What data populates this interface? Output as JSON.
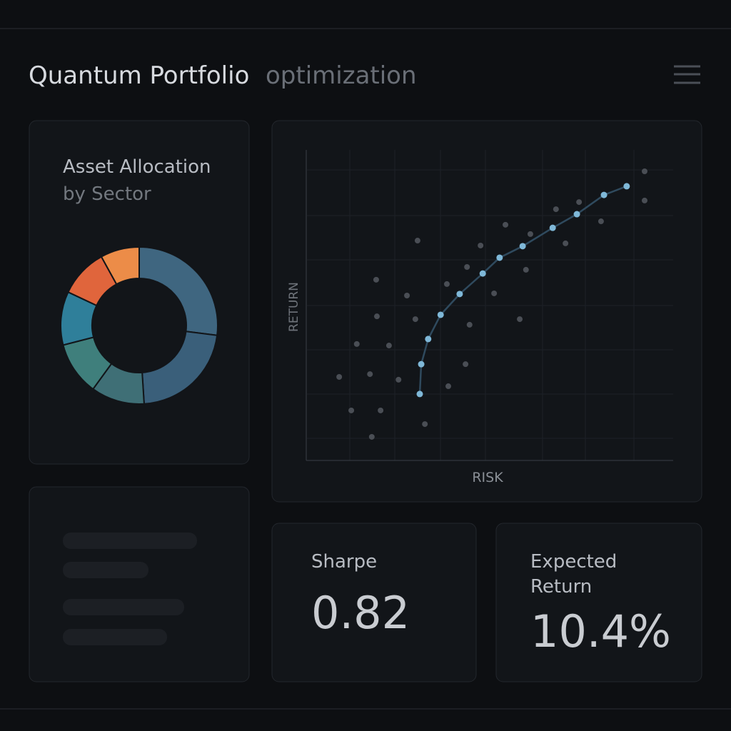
{
  "header": {
    "title": "Quantum Portfolio",
    "subtitle": "optimization"
  },
  "chart_data": [
    {
      "type": "pie",
      "title": "Asset Allocation",
      "subtitle": "by Sector",
      "values": [
        27,
        22,
        11,
        11,
        11,
        10,
        8
      ],
      "colors": [
        "#3f6680",
        "#3a5f7a",
        "#3f6f76",
        "#3f7f7c",
        "#2f7f9a",
        "#e0653c",
        "#ec8c48"
      ]
    },
    {
      "type": "scatter",
      "xlabel": "RISK",
      "ylabel": "RETURN",
      "xlim": [
        0,
        100
      ],
      "ylim": [
        0,
        100
      ],
      "series": [
        {
          "color": "#4a4e55",
          "x": [
            92.2,
            92.2,
            74.3,
            68.0,
            80.3,
            61.0,
            54.2,
            47.4,
            70.6,
            30.2,
            43.7,
            59.8,
            18.9,
            38.2,
            27.3,
            51.1,
            19.1,
            29.6,
            58.1,
            44.4,
            13.6,
            22.4,
            43.3,
            8.8,
            17.2,
            25.0,
            38.6,
            12.1,
            20.1,
            17.7,
            32.2
          ],
          "values": [
            93.1,
            83.7,
            83.2,
            80.9,
            77.0,
            72.9,
            75.9,
            69.2,
            69.9,
            70.8,
            62.3,
            61.4,
            58.2,
            56.8,
            53.1,
            53.8,
            46.4,
            45.5,
            45.5,
            43.7,
            37.5,
            37.0,
            31.0,
            26.9,
            27.8,
            26.0,
            23.9,
            16.1,
            16.1,
            7.6,
            11.7
          ]
        },
        {
          "color": "#7fb8d8",
          "line_color": "#2f4a5e",
          "mode": "line",
          "x": [
            30.8,
            31.2,
            33.1,
            36.5,
            41.7,
            48.0,
            52.6,
            58.9,
            67.1,
            73.7,
            81.1,
            87.3
          ],
          "values": [
            21.4,
            31.0,
            39.1,
            46.9,
            53.6,
            60.2,
            65.3,
            69.0,
            74.9,
            79.3,
            85.5,
            88.3
          ]
        }
      ]
    }
  ],
  "kpis": [
    {
      "label": "Sharpe",
      "value": "0.82"
    },
    {
      "label": "Expected Return",
      "value": "10.4%"
    }
  ]
}
